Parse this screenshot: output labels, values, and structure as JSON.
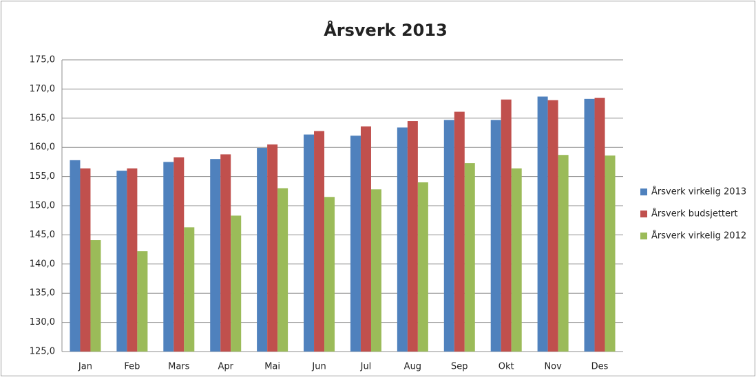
{
  "chart_data": {
    "type": "bar",
    "title": "Årsverk 2013",
    "categories": [
      "Jan",
      "Feb",
      "Mars",
      "Apr",
      "Mai",
      "Jun",
      "Jul",
      "Aug",
      "Sep",
      "Okt",
      "Nov",
      "Des"
    ],
    "series": [
      {
        "name": "Årsverk virkelig 2013",
        "color": "#4f81bd",
        "values": [
          157.8,
          156.0,
          157.5,
          158.0,
          159.9,
          162.2,
          162.0,
          163.4,
          164.7,
          164.7,
          168.7,
          168.3
        ]
      },
      {
        "name": "Årsverk budsjettert",
        "color": "#c0504d",
        "values": [
          156.4,
          156.4,
          158.3,
          158.8,
          160.5,
          162.8,
          163.6,
          164.5,
          166.1,
          168.2,
          168.1,
          168.5
        ]
      },
      {
        "name": "Årsverk virkelig 2012",
        "color": "#9bbb59",
        "values": [
          144.1,
          142.2,
          146.3,
          148.3,
          153.0,
          151.5,
          152.8,
          154.0,
          157.3,
          156.4,
          158.7,
          158.6
        ]
      }
    ],
    "ylim": [
      125,
      175
    ],
    "yticks": [
      {
        "value": 125,
        "label": "125,0"
      },
      {
        "value": 130,
        "label": "130,0"
      },
      {
        "value": 135,
        "label": "135,0"
      },
      {
        "value": 140,
        "label": "140,0"
      },
      {
        "value": 145,
        "label": "145,0"
      },
      {
        "value": 150,
        "label": "150,0"
      },
      {
        "value": 155,
        "label": "155,0"
      },
      {
        "value": 160,
        "label": "160,0"
      },
      {
        "value": 165,
        "label": "165,0"
      },
      {
        "value": 170,
        "label": "170,0"
      },
      {
        "value": 175,
        "label": "175,0"
      }
    ],
    "grid": true,
    "legend": "right"
  }
}
